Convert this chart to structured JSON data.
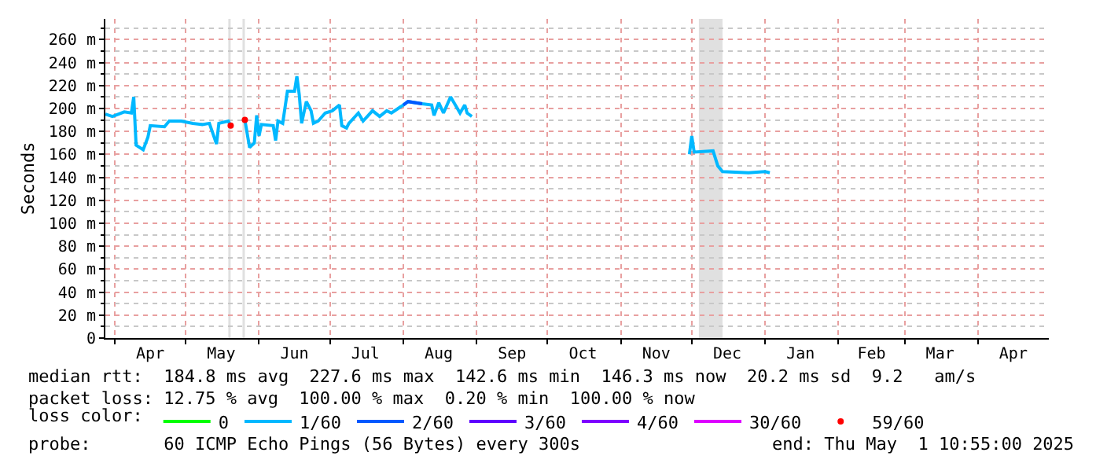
{
  "chart_data": {
    "type": "line",
    "ylabel": "Seconds",
    "legend_title": "loss color:",
    "legend": "bottom",
    "grid": true,
    "xlim": [
      "2024-03-28",
      "2025-05-01"
    ],
    "ylim": [
      0,
      278
    ],
    "xticks": [
      {
        "value": "2024-04-01",
        "label": null
      },
      {
        "value": "2024-04-16",
        "label": "Apr"
      },
      {
        "value": "2024-05-01",
        "label": null
      },
      {
        "value": "2024-05-16",
        "label": "May"
      },
      {
        "value": "2024-06-01",
        "label": null
      },
      {
        "value": "2024-06-16",
        "label": "Jun"
      },
      {
        "value": "2024-07-01",
        "label": null
      },
      {
        "value": "2024-07-16",
        "label": "Jul"
      },
      {
        "value": "2024-08-01",
        "label": null
      },
      {
        "value": "2024-08-16",
        "label": "Aug"
      },
      {
        "value": "2024-09-01",
        "label": null
      },
      {
        "value": "2024-09-16",
        "label": "Sep"
      },
      {
        "value": "2024-10-01",
        "label": null
      },
      {
        "value": "2024-10-16",
        "label": "Oct"
      },
      {
        "value": "2024-11-01",
        "label": null
      },
      {
        "value": "2024-11-16",
        "label": "Nov"
      },
      {
        "value": "2024-12-01",
        "label": null
      },
      {
        "value": "2024-12-16",
        "label": "Dec"
      },
      {
        "value": "2025-01-01",
        "label": null
      },
      {
        "value": "2025-01-16",
        "label": "Jan"
      },
      {
        "value": "2025-02-01",
        "label": null
      },
      {
        "value": "2025-02-15",
        "label": "Feb"
      },
      {
        "value": "2025-03-01",
        "label": null
      },
      {
        "value": "2025-03-16",
        "label": "Mar"
      },
      {
        "value": "2025-04-01",
        "label": null
      },
      {
        "value": "2025-04-16",
        "label": "Apr"
      }
    ],
    "yticks": [
      0,
      {
        "value": 10,
        "label": null
      },
      {
        "value": 20,
        "label": "20 m"
      },
      {
        "value": 30,
        "label": null
      },
      {
        "value": 40,
        "label": "40 m"
      },
      {
        "value": 50,
        "label": null
      },
      {
        "value": 60,
        "label": "60 m"
      },
      {
        "value": 70,
        "label": null
      },
      {
        "value": 80,
        "label": "80 m"
      },
      {
        "value": 90,
        "label": null
      },
      {
        "value": 100,
        "label": "100 m"
      },
      {
        "value": 110,
        "label": null
      },
      {
        "value": 120,
        "label": "120 m"
      },
      {
        "value": 130,
        "label": null
      },
      {
        "value": 140,
        "label": "140 m"
      },
      {
        "value": 150,
        "label": null
      },
      {
        "value": 160,
        "label": "160 m"
      },
      {
        "value": 170,
        "label": null
      },
      {
        "value": 180,
        "label": "180 m"
      },
      {
        "value": 190,
        "label": null
      },
      {
        "value": 200,
        "label": "200 m"
      },
      {
        "value": 210,
        "label": null
      },
      {
        "value": 220,
        "label": "220 m"
      },
      {
        "value": 230,
        "label": null
      },
      {
        "value": 240,
        "label": "240 m"
      },
      {
        "value": 250,
        "label": null
      },
      {
        "value": 260,
        "label": "260 m"
      },
      {
        "value": 270,
        "label": null
      }
    ],
    "x": [
      "2024-03-28",
      "2024-03-31",
      "2024-04-05",
      "2024-04-08",
      "2024-04-09",
      "2024-04-10",
      "2024-04-13",
      "2024-04-15",
      "2024-04-16",
      "2024-04-22",
      "2024-04-24",
      "2024-04-29",
      "2024-05-04",
      "2024-05-08",
      "2024-05-11",
      "2024-05-14",
      "2024-05-15",
      "2024-05-19",
      "2024-05-20",
      "2024-05-22",
      "2024-05-26",
      "2024-05-28",
      "2024-05-30",
      "2024-05-31",
      "2024-06-01",
      "2024-06-02",
      "2024-06-07",
      "2024-06-08",
      "2024-06-09",
      "2024-06-11",
      "2024-06-13",
      "2024-06-16",
      "2024-06-17",
      "2024-06-18",
      "2024-06-19",
      "2024-06-21",
      "2024-06-23",
      "2024-06-24",
      "2024-06-26",
      "2024-06-29",
      "2024-07-02",
      "2024-07-05",
      "2024-07-06",
      "2024-07-08",
      "2024-07-09",
      "2024-07-13",
      "2024-07-15",
      "2024-07-19",
      "2024-07-22",
      "2024-07-25",
      "2024-07-27",
      "2024-08-01",
      "2024-08-03",
      "2024-08-09",
      "2024-08-13",
      "2024-08-14",
      "2024-08-16",
      "2024-08-18",
      "2024-08-21",
      "2024-08-23",
      "2024-08-25",
      "2024-08-27",
      "2024-08-28",
      "2024-08-30",
      "2024-09-15",
      "2024-11-30",
      "2024-12-01",
      "2024-12-02",
      "2024-12-10",
      "2024-12-12",
      "2024-12-14",
      "2024-12-25",
      "2025-01-01",
      "2025-01-03"
    ],
    "series": [
      {
        "name": "0",
        "color": "#00ff00",
        "values": [
          null,
          null,
          null,
          null,
          null,
          null,
          null,
          null,
          null,
          null,
          null,
          null,
          null,
          null,
          null,
          null,
          null,
          null,
          null,
          null,
          null,
          null,
          null,
          null,
          null,
          null,
          null,
          null,
          null,
          null,
          null,
          null,
          null,
          null,
          null,
          null,
          null,
          null,
          null,
          null,
          null,
          null,
          null,
          null,
          null,
          null,
          null,
          null,
          null,
          null,
          null,
          null,
          null,
          null,
          null,
          null,
          null,
          null,
          null,
          null,
          null,
          null,
          null,
          null,
          null,
          null,
          null,
          null,
          null,
          null,
          null,
          null,
          null,
          null
        ]
      },
      {
        "name": "1/60",
        "color": "#00b8ff",
        "values": [
          195,
          193,
          197,
          196,
          210,
          168,
          164,
          175,
          185,
          184,
          189,
          189,
          187,
          186,
          187,
          169,
          187,
          189,
          185,
          null,
          190,
          166,
          170,
          194,
          176,
          186,
          185,
          172,
          189,
          187,
          215,
          215,
          228,
          212,
          187,
          206,
          198,
          187,
          189,
          196,
          198,
          203,
          185,
          183,
          187,
          196,
          189,
          198,
          193,
          198,
          196,
          203,
          206,
          204,
          203,
          194,
          205,
          196,
          210,
          203,
          196,
          203,
          196,
          193,
          null,
          160,
          176,
          162,
          163,
          150,
          145,
          144,
          145,
          144
        ]
      },
      {
        "name": "2/60",
        "color": "#0059ff",
        "values": [
          null,
          null,
          null,
          null,
          null,
          null,
          null,
          null,
          null,
          null,
          null,
          null,
          null,
          null,
          null,
          null,
          null,
          null,
          null,
          null,
          null,
          null,
          null,
          null,
          null,
          null,
          null,
          null,
          null,
          null,
          null,
          null,
          null,
          null,
          null,
          null,
          null,
          null,
          null,
          null,
          null,
          null,
          null,
          null,
          null,
          null,
          null,
          null,
          null,
          null,
          null,
          203,
          206,
          204,
          null,
          null,
          null,
          null,
          null,
          null,
          null,
          null,
          null,
          null,
          null,
          null,
          null,
          null,
          null,
          null,
          null,
          null,
          null,
          null
        ]
      },
      {
        "name": "3/60",
        "color": "#5e00ff",
        "values": [
          null,
          null,
          null,
          null,
          null,
          null,
          null,
          null,
          null,
          null,
          null,
          null,
          null,
          null,
          null,
          null,
          null,
          null,
          null,
          null,
          null,
          null,
          null,
          null,
          null,
          null,
          null,
          null,
          null,
          null,
          null,
          null,
          null,
          null,
          null,
          null,
          null,
          null,
          null,
          null,
          null,
          null,
          null,
          null,
          null,
          null,
          null,
          null,
          null,
          null,
          null,
          null,
          null,
          null,
          null,
          null,
          null,
          null,
          null,
          null,
          null,
          null,
          null,
          null,
          null,
          null,
          null,
          null,
          null,
          null,
          null,
          null,
          null,
          null
        ]
      },
      {
        "name": "4/60",
        "color": "#7e00ff",
        "values": [
          null,
          null,
          null,
          null,
          null,
          null,
          null,
          null,
          null,
          null,
          null,
          null,
          null,
          null,
          null,
          null,
          null,
          null,
          null,
          null,
          null,
          null,
          null,
          null,
          null,
          null,
          null,
          null,
          null,
          null,
          null,
          null,
          null,
          null,
          null,
          null,
          null,
          null,
          null,
          null,
          null,
          null,
          null,
          null,
          null,
          null,
          null,
          null,
          null,
          null,
          null,
          null,
          null,
          null,
          null,
          null,
          null,
          null,
          null,
          null,
          null,
          null,
          null,
          null,
          null,
          null,
          null,
          null,
          null,
          null,
          null,
          null,
          null,
          null
        ]
      },
      {
        "name": "30/60",
        "color": "#dd00ff",
        "values": [
          null,
          null,
          null,
          null,
          null,
          null,
          null,
          null,
          null,
          null,
          null,
          null,
          null,
          null,
          null,
          null,
          null,
          null,
          null,
          null,
          null,
          null,
          null,
          null,
          null,
          null,
          null,
          null,
          null,
          null,
          null,
          null,
          null,
          null,
          null,
          null,
          null,
          null,
          null,
          null,
          null,
          null,
          null,
          null,
          null,
          null,
          null,
          null,
          null,
          null,
          null,
          null,
          null,
          null,
          null,
          null,
          null,
          null,
          null,
          null,
          null,
          null,
          null,
          null,
          null,
          null,
          null,
          null,
          null,
          null,
          null,
          null,
          null,
          null
        ]
      },
      {
        "name": "59/60",
        "type": "scatter",
        "color": "#ff0000",
        "values": [
          null,
          null,
          null,
          null,
          null,
          null,
          null,
          null,
          null,
          null,
          null,
          null,
          null,
          null,
          null,
          null,
          null,
          null,
          185,
          null,
          190,
          null,
          null,
          null,
          null,
          null,
          null,
          null,
          null,
          null,
          null,
          null,
          null,
          null,
          null,
          null,
          null,
          null,
          null,
          null,
          null,
          null,
          null,
          null,
          null,
          null,
          null,
          null,
          null,
          null,
          null,
          null,
          null,
          null,
          null,
          null,
          null,
          null,
          null,
          null,
          null,
          null,
          null,
          null,
          null,
          null,
          null,
          null,
          null,
          null,
          null,
          null,
          null,
          null
        ]
      }
    ],
    "bands": [
      {
        "axis": "x",
        "from": "2024-05-19",
        "to": "2024-05-20",
        "color": "#e0e0e0"
      },
      {
        "axis": "x",
        "from": "2024-05-25",
        "to": "2024-05-26",
        "color": "#e0e0e0"
      },
      {
        "axis": "x",
        "from": "2024-12-04",
        "to": "2024-12-14",
        "color": "#e0e0e0"
      }
    ],
    "annotations": [
      "median rtt:  184.8 ms avg  227.6 ms max  142.6 ms min  146.3 ms now  20.2 ms sd  9.2   am/s",
      "packet loss: 12.75 % avg  100.00 % max  0.20 % min  100.00 % now",
      "probe:       60 ICMP Echo Pings (56 Bytes) every 300s",
      "end: Thu May  1 10:55:00 2025"
    ]
  }
}
